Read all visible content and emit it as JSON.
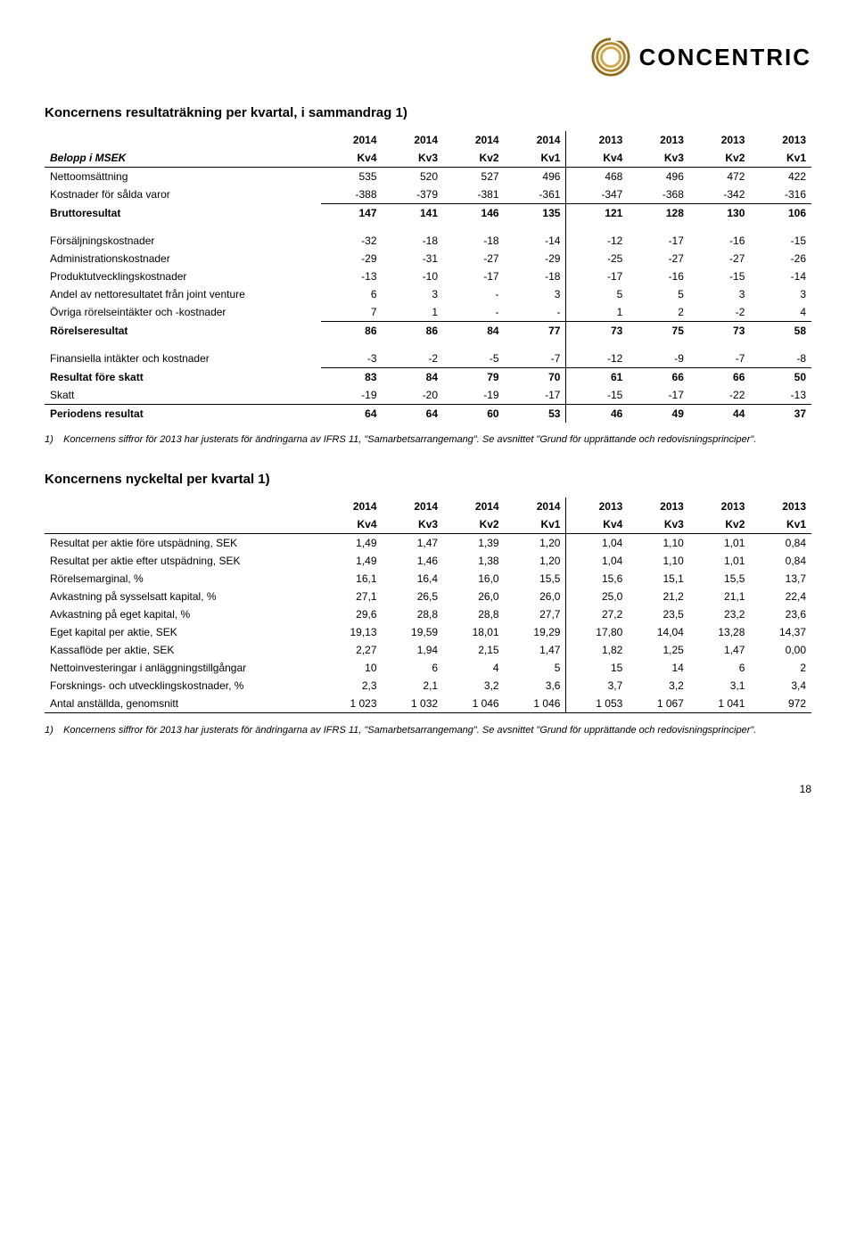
{
  "brand": {
    "name": "CONCENTRIC",
    "ring_colors": [
      "#d4a84a",
      "#b58a2a",
      "#8f6c1c"
    ]
  },
  "page_number": "18",
  "table1": {
    "title": "Koncernens resultaträkning per kvartal, i sammandrag 1)",
    "years": [
      "2014",
      "2014",
      "2014",
      "2014",
      "2013",
      "2013",
      "2013",
      "2013"
    ],
    "row_label_header": "Belopp i MSEK",
    "quarters": [
      "Kv4",
      "Kv3",
      "Kv2",
      "Kv1",
      "Kv4",
      "Kv3",
      "Kv2",
      "Kv1"
    ],
    "rows": [
      {
        "label": "Nettoomsättning",
        "values": [
          "535",
          "520",
          "527",
          "496",
          "468",
          "496",
          "472",
          "422"
        ]
      },
      {
        "label": "Kostnader för sålda varor",
        "values": [
          "-388",
          "-379",
          "-381",
          "-361",
          "-347",
          "-368",
          "-342",
          "-316"
        ],
        "bottom_border_data": true
      },
      {
        "label": "Bruttoresultat",
        "values": [
          "147",
          "141",
          "146",
          "135",
          "121",
          "128",
          "130",
          "106"
        ],
        "bold": true
      },
      {
        "label": "Försäljningskostnader",
        "values": [
          "-32",
          "-18",
          "-18",
          "-14",
          "-12",
          "-17",
          "-16",
          "-15"
        ],
        "pad_top": true
      },
      {
        "label": "Administrationskostnader",
        "values": [
          "-29",
          "-31",
          "-27",
          "-29",
          "-25",
          "-27",
          "-27",
          "-26"
        ]
      },
      {
        "label": "Produktutvecklingskostnader",
        "values": [
          "-13",
          "-10",
          "-17",
          "-18",
          "-17",
          "-16",
          "-15",
          "-14"
        ]
      },
      {
        "label": "Andel av nettoresultatet från joint venture",
        "values": [
          "6",
          "3",
          "-",
          "3",
          "5",
          "5",
          "3",
          "3"
        ]
      },
      {
        "label": "Övriga rörelseintäkter och -kostnader",
        "values": [
          "7",
          "1",
          "-",
          "-",
          "1",
          "2",
          "-2",
          "4"
        ],
        "bottom_border_data": true
      },
      {
        "label": "Rörelseresultat",
        "values": [
          "86",
          "86",
          "84",
          "77",
          "73",
          "75",
          "73",
          "58"
        ],
        "bold": true
      },
      {
        "label": "Finansiella intäkter och kostnader",
        "values": [
          "-3",
          "-2",
          "-5",
          "-7",
          "-12",
          "-9",
          "-7",
          "-8"
        ],
        "pad_top": true,
        "bottom_border_data": true
      },
      {
        "label": "Resultat före skatt",
        "values": [
          "83",
          "84",
          "79",
          "70",
          "61",
          "66",
          "66",
          "50"
        ],
        "bold": true
      },
      {
        "label": "Skatt",
        "values": [
          "-19",
          "-20",
          "-19",
          "-17",
          "-15",
          "-17",
          "-22",
          "-13"
        ],
        "bottom_border_all": true
      },
      {
        "label": "Periodens resultat",
        "values": [
          "64",
          "64",
          "60",
          "53",
          "46",
          "49",
          "44",
          "37"
        ],
        "bold": true
      }
    ],
    "footnote_num": "1)",
    "footnote_text": "Koncernens siffror för 2013 har justerats för ändringarna av IFRS 11, \"Samarbetsarrangemang\". Se avsnittet \"Grund för upprättande och redovisningsprinciper\"."
  },
  "table2": {
    "title": "Koncernens nyckeltal per kvartal 1)",
    "years": [
      "2014",
      "2014",
      "2014",
      "2014",
      "2013",
      "2013",
      "2013",
      "2013"
    ],
    "quarters": [
      "Kv4",
      "Kv3",
      "Kv2",
      "Kv1",
      "Kv4",
      "Kv3",
      "Kv2",
      "Kv1"
    ],
    "rows": [
      {
        "label": "Resultat per aktie före utspädning, SEK",
        "values": [
          "1,49",
          "1,47",
          "1,39",
          "1,20",
          "1,04",
          "1,10",
          "1,01",
          "0,84"
        ]
      },
      {
        "label": "Resultat per aktie efter utspädning, SEK",
        "values": [
          "1,49",
          "1,46",
          "1,38",
          "1,20",
          "1,04",
          "1,10",
          "1,01",
          "0,84"
        ]
      },
      {
        "label": "Rörelsemarginal, %",
        "values": [
          "16,1",
          "16,4",
          "16,0",
          "15,5",
          "15,6",
          "15,1",
          "15,5",
          "13,7"
        ]
      },
      {
        "label": "Avkastning på sysselsatt kapital, %",
        "values": [
          "27,1",
          "26,5",
          "26,0",
          "26,0",
          "25,0",
          "21,2",
          "21,1",
          "22,4"
        ]
      },
      {
        "label": "Avkastning på eget kapital, %",
        "values": [
          "29,6",
          "28,8",
          "28,8",
          "27,7",
          "27,2",
          "23,5",
          "23,2",
          "23,6"
        ]
      },
      {
        "label": "Eget kapital per aktie, SEK",
        "values": [
          "19,13",
          "19,59",
          "18,01",
          "19,29",
          "17,80",
          "14,04",
          "13,28",
          "14,37"
        ]
      },
      {
        "label": "Kassaflöde per aktie, SEK",
        "values": [
          "2,27",
          "1,94",
          "2,15",
          "1,47",
          "1,82",
          "1,25",
          "1,47",
          "0,00"
        ]
      },
      {
        "label": "Nettoinvesteringar i anläggningstillgångar",
        "values": [
          "10",
          "6",
          "4",
          "5",
          "15",
          "14",
          "6",
          "2"
        ]
      },
      {
        "label": "Forsknings- och utvecklingskostnader, %",
        "values": [
          "2,3",
          "2,1",
          "3,2",
          "3,6",
          "3,7",
          "3,2",
          "3,1",
          "3,4"
        ]
      },
      {
        "label": "Antal anställda, genomsnitt",
        "values": [
          "1 023",
          "1 032",
          "1 046",
          "1 046",
          "1 053",
          "1 067",
          "1 041",
          "972"
        ],
        "bottom_border_all": true
      }
    ],
    "footnote_num": "1)",
    "footnote_text": "Koncernens siffror för 2013 har justerats för ändringarna av IFRS 11, \"Samarbetsarrangemang\". Se avsnittet \"Grund för upprättande och redovisningsprinciper\"."
  }
}
